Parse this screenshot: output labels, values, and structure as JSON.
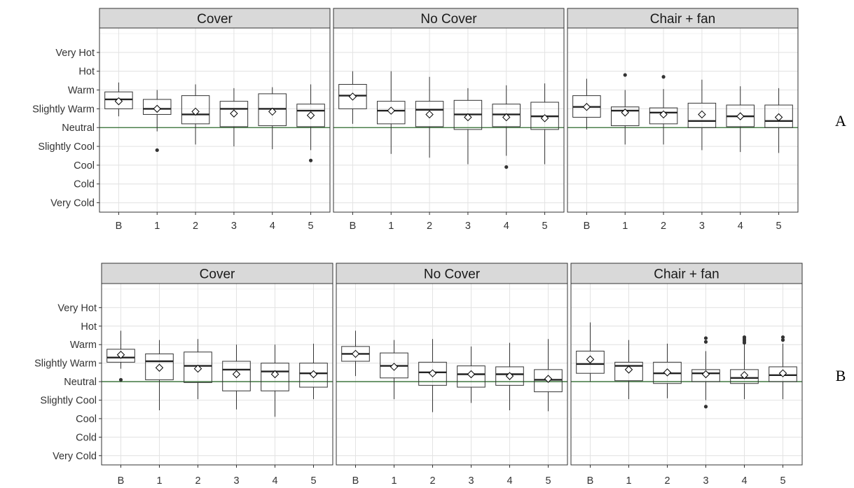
{
  "chart_data": [
    {
      "type": "boxplot",
      "row_label": "A",
      "y_levels": [
        "Very Cold",
        "Cold",
        "Cool",
        "Slightly Cool",
        "Neutral",
        "Slightly Warm",
        "Warm",
        "Hot",
        "Very Hot"
      ],
      "y_values": [
        -4,
        -3,
        -2,
        -1,
        0,
        1,
        2,
        3,
        4
      ],
      "ylim": [
        -4.5,
        5.3
      ],
      "reference_line": {
        "y": 0,
        "color": "#2e6b2e"
      },
      "categories": [
        "B",
        "1",
        "2",
        "3",
        "4",
        "5"
      ],
      "panels": [
        {
          "title": "Cover",
          "boxes": [
            {
              "q1": 1.0,
              "median": 1.5,
              "q3": 1.9,
              "whisker_low": 0.6,
              "whisker_high": 2.4,
              "mean": 1.4,
              "outliers": []
            },
            {
              "q1": 0.7,
              "median": 1.0,
              "q3": 1.5,
              "whisker_low": -0.2,
              "whisker_high": 2.0,
              "mean": 1.0,
              "outliers": [
                -1.2
              ]
            },
            {
              "q1": 0.2,
              "median": 0.7,
              "q3": 1.7,
              "whisker_low": -0.9,
              "whisker_high": 2.3,
              "mean": 0.85,
              "outliers": []
            },
            {
              "q1": 0.05,
              "median": 1.0,
              "q3": 1.4,
              "whisker_low": -1.0,
              "whisker_high": 2.1,
              "mean": 0.75,
              "outliers": []
            },
            {
              "q1": 0.1,
              "median": 1.0,
              "q3": 1.8,
              "whisker_low": -1.15,
              "whisker_high": 2.15,
              "mean": 0.85,
              "outliers": []
            },
            {
              "q1": 0.05,
              "median": 0.9,
              "q3": 1.25,
              "whisker_low": -1.2,
              "whisker_high": 2.3,
              "mean": 0.65,
              "outliers": [
                -1.75
              ]
            }
          ]
        },
        {
          "title": "No Cover",
          "boxes": [
            {
              "q1": 1.0,
              "median": 1.7,
              "q3": 2.3,
              "whisker_low": 0.2,
              "whisker_high": 3.0,
              "mean": 1.65,
              "outliers": []
            },
            {
              "q1": 0.2,
              "median": 0.9,
              "q3": 1.4,
              "whisker_low": -1.4,
              "whisker_high": 3.0,
              "mean": 0.9,
              "outliers": []
            },
            {
              "q1": 0.05,
              "median": 0.95,
              "q3": 1.4,
              "whisker_low": -1.6,
              "whisker_high": 2.7,
              "mean": 0.7,
              "outliers": []
            },
            {
              "q1": -0.1,
              "median": 0.7,
              "q3": 1.45,
              "whisker_low": -1.95,
              "whisker_high": 2.1,
              "mean": 0.55,
              "outliers": []
            },
            {
              "q1": 0.05,
              "median": 0.7,
              "q3": 1.25,
              "whisker_low": -1.5,
              "whisker_high": 2.25,
              "mean": 0.55,
              "outliers": [
                -2.1
              ]
            },
            {
              "q1": -0.1,
              "median": 0.6,
              "q3": 1.35,
              "whisker_low": -1.95,
              "whisker_high": 2.35,
              "mean": 0.5,
              "outliers": []
            }
          ]
        },
        {
          "title": "Chair + fan",
          "boxes": [
            {
              "q1": 0.55,
              "median": 1.1,
              "q3": 1.7,
              "whisker_low": -0.1,
              "whisker_high": 2.6,
              "mean": 1.1,
              "outliers": []
            },
            {
              "q1": 0.1,
              "median": 0.9,
              "q3": 1.1,
              "whisker_low": -0.9,
              "whisker_high": 2.0,
              "mean": 0.8,
              "outliers": [
                2.8
              ]
            },
            {
              "q1": 0.2,
              "median": 0.8,
              "q3": 1.05,
              "whisker_low": -0.9,
              "whisker_high": 2.05,
              "mean": 0.7,
              "outliers": [
                2.7
              ]
            },
            {
              "q1": 0.0,
              "median": 0.35,
              "q3": 1.3,
              "whisker_low": -1.2,
              "whisker_high": 2.55,
              "mean": 0.7,
              "outliers": []
            },
            {
              "q1": 0.05,
              "median": 0.6,
              "q3": 1.2,
              "whisker_low": -1.3,
              "whisker_high": 2.2,
              "mean": 0.6,
              "outliers": []
            },
            {
              "q1": 0.0,
              "median": 0.35,
              "q3": 1.2,
              "whisker_low": -1.35,
              "whisker_high": 2.1,
              "mean": 0.55,
              "outliers": []
            }
          ]
        }
      ]
    },
    {
      "type": "boxplot",
      "row_label": "B",
      "y_levels": [
        "Very Cold",
        "Cold",
        "Cool",
        "Slightly Cool",
        "Neutral",
        "Slightly Warm",
        "Warm",
        "Hot",
        "Very Hot"
      ],
      "y_values": [
        -4,
        -3,
        -2,
        -1,
        0,
        1,
        2,
        3,
        4
      ],
      "ylim": [
        -4.5,
        5.3
      ],
      "reference_line": {
        "y": 0,
        "color": "#2e6b2e"
      },
      "categories": [
        "B",
        "1",
        "2",
        "3",
        "4",
        "5"
      ],
      "panels": [
        {
          "title": "Cover",
          "boxes": [
            {
              "q1": 1.05,
              "median": 1.3,
              "q3": 1.75,
              "whisker_low": 0.7,
              "whisker_high": 2.75,
              "mean": 1.45,
              "outliers": [
                0.1
              ]
            },
            {
              "q1": 0.1,
              "median": 1.1,
              "q3": 1.5,
              "whisker_low": -1.55,
              "whisker_high": 2.25,
              "mean": 0.75,
              "outliers": []
            },
            {
              "q1": -0.05,
              "median": 0.85,
              "q3": 1.6,
              "whisker_low": -0.95,
              "whisker_high": 2.3,
              "mean": 0.7,
              "outliers": []
            },
            {
              "q1": -0.5,
              "median": 0.65,
              "q3": 1.1,
              "whisker_low": -1.5,
              "whisker_high": 2.0,
              "mean": 0.4,
              "outliers": []
            },
            {
              "q1": -0.5,
              "median": 0.55,
              "q3": 1.0,
              "whisker_low": -1.9,
              "whisker_high": 2.0,
              "mean": 0.4,
              "outliers": []
            },
            {
              "q1": -0.3,
              "median": 0.45,
              "q3": 1.0,
              "whisker_low": -0.95,
              "whisker_high": 2.05,
              "mean": 0.4,
              "outliers": []
            }
          ]
        },
        {
          "title": "No Cover",
          "boxes": [
            {
              "q1": 1.1,
              "median": 1.5,
              "q3": 1.9,
              "whisker_low": 0.3,
              "whisker_high": 2.75,
              "mean": 1.5,
              "outliers": []
            },
            {
              "q1": 0.2,
              "median": 0.85,
              "q3": 1.55,
              "whisker_low": -0.95,
              "whisker_high": 2.25,
              "mean": 0.8,
              "outliers": []
            },
            {
              "q1": -0.2,
              "median": 0.5,
              "q3": 1.05,
              "whisker_low": -1.65,
              "whisker_high": 2.3,
              "mean": 0.45,
              "outliers": []
            },
            {
              "q1": -0.3,
              "median": 0.4,
              "q3": 0.85,
              "whisker_low": -1.15,
              "whisker_high": 1.9,
              "mean": 0.4,
              "outliers": []
            },
            {
              "q1": -0.2,
              "median": 0.4,
              "q3": 0.8,
              "whisker_low": -1.55,
              "whisker_high": 2.1,
              "mean": 0.3,
              "outliers": []
            },
            {
              "q1": -0.55,
              "median": 0.1,
              "q3": 0.65,
              "whisker_low": -1.6,
              "whisker_high": 2.3,
              "mean": 0.15,
              "outliers": []
            }
          ]
        },
        {
          "title": "Chair + fan",
          "boxes": [
            {
              "q1": 0.45,
              "median": 0.95,
              "q3": 1.65,
              "whisker_low": 0.0,
              "whisker_high": 3.2,
              "mean": 1.2,
              "outliers": []
            },
            {
              "q1": 0.05,
              "median": 0.85,
              "q3": 1.05,
              "whisker_low": -0.95,
              "whisker_high": 2.25,
              "mean": 0.65,
              "outliers": []
            },
            {
              "q1": -0.1,
              "median": 0.45,
              "q3": 1.05,
              "whisker_low": -0.9,
              "whisker_high": 2.05,
              "mean": 0.5,
              "outliers": []
            },
            {
              "q1": 0.0,
              "median": 0.45,
              "q3": 0.65,
              "whisker_low": -1.0,
              "whisker_high": 1.65,
              "mean": 0.4,
              "outliers": [
                2.15,
                2.35,
                -1.35
              ]
            },
            {
              "q1": -0.1,
              "median": 0.2,
              "q3": 0.65,
              "whisker_low": -0.95,
              "whisker_high": 2.05,
              "mean": 0.35,
              "outliers": [
                2.1,
                2.2,
                2.3,
                2.4
              ]
            },
            {
              "q1": 0.0,
              "median": 0.35,
              "q3": 0.8,
              "whisker_low": -0.95,
              "whisker_high": 2.05,
              "mean": 0.45,
              "outliers": [
                2.25,
                2.4
              ]
            }
          ]
        }
      ]
    }
  ]
}
